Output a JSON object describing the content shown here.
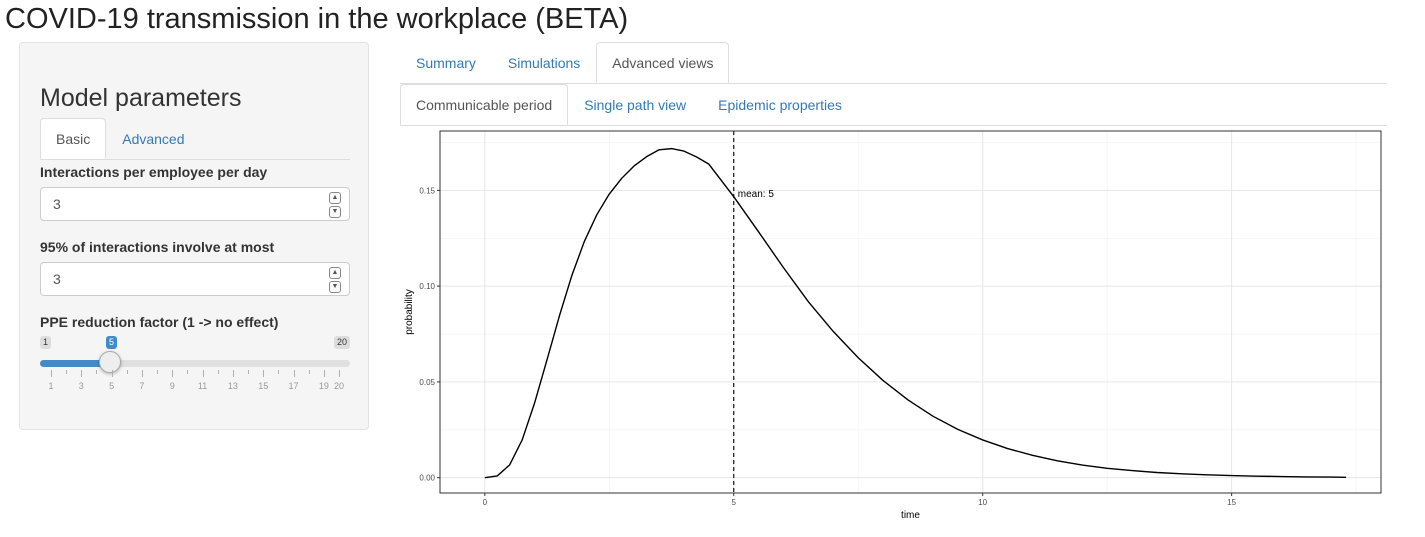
{
  "app": {
    "title": "COVID-19 transmission in the workplace (BETA)"
  },
  "sidebar": {
    "title": "Model parameters",
    "tabs": [
      {
        "label": "Basic",
        "active": true
      },
      {
        "label": "Advanced",
        "active": false
      }
    ],
    "interactions": {
      "label": "Interactions per employee per day",
      "value": "3"
    },
    "group_size": {
      "label": "95% of interactions involve at most",
      "value": "3"
    },
    "ppe": {
      "label": "PPE reduction factor (1 -> no effect)",
      "min": "1",
      "max": "20",
      "value": "5",
      "level_fraction": 0.2105,
      "tick_labels": [
        "1",
        "3",
        "5",
        "7",
        "9",
        "11",
        "13",
        "15",
        "17",
        "19",
        "20"
      ]
    }
  },
  "main": {
    "tabs": [
      {
        "label": "Summary",
        "active": false
      },
      {
        "label": "Simulations",
        "active": false
      },
      {
        "label": "Advanced views",
        "active": true
      }
    ],
    "subtabs": [
      {
        "label": "Communicable period",
        "active": true
      },
      {
        "label": "Single path view",
        "active": false
      },
      {
        "label": "Epidemic properties",
        "active": false
      }
    ]
  },
  "colors": {
    "accent": "#337ab7",
    "slider": "#428bca"
  },
  "chart_data": {
    "type": "line",
    "title": "",
    "xlabel": "time",
    "ylabel": "probability",
    "xlim": [
      -0.9,
      18.0
    ],
    "ylim": [
      -0.008,
      0.181
    ],
    "grid": true,
    "x_ticks": [
      0,
      5,
      10,
      15
    ],
    "x_tick_labels": [
      "0",
      "5",
      "10",
      "15"
    ],
    "y_ticks": [
      0.0,
      0.05,
      0.1,
      0.15
    ],
    "y_tick_labels": [
      "0.00",
      "0.05",
      "0.10",
      "0.15"
    ],
    "series": [
      {
        "x": [
          0,
          0.25,
          0.5,
          0.75,
          1,
          1.25,
          1.5,
          1.75,
          2,
          2.25,
          2.5,
          2.75,
          3,
          3.25,
          3.5,
          3.75,
          4,
          4.25,
          4.5,
          5,
          5.5,
          6,
          6.5,
          7,
          7.5,
          8,
          8.5,
          9,
          9.5,
          10,
          10.5,
          11,
          11.5,
          12,
          12.5,
          13,
          13.5,
          14,
          14.5,
          15,
          15.5,
          16,
          16.5,
          17,
          17.3
        ],
        "y": [
          0.0,
          0.0009,
          0.0067,
          0.0197,
          0.039,
          0.0616,
          0.0846,
          0.1057,
          0.1234,
          0.1373,
          0.1481,
          0.1563,
          0.1628,
          0.1676,
          0.1712,
          0.1718,
          0.1705,
          0.1675,
          0.1637,
          0.1467,
          0.1283,
          0.1096,
          0.0918,
          0.0763,
          0.0626,
          0.0507,
          0.0406,
          0.0321,
          0.0252,
          0.0197,
          0.0152,
          0.0117,
          0.0088,
          0.0066,
          0.0049,
          0.0037,
          0.0027,
          0.002,
          0.0015,
          0.0011,
          0.0008,
          0.0006,
          0.0004,
          0.0003,
          0.0002
        ]
      }
    ],
    "annotations": [
      {
        "x": 5,
        "text": "mean: 5",
        "line": "dashed vertical"
      }
    ]
  }
}
